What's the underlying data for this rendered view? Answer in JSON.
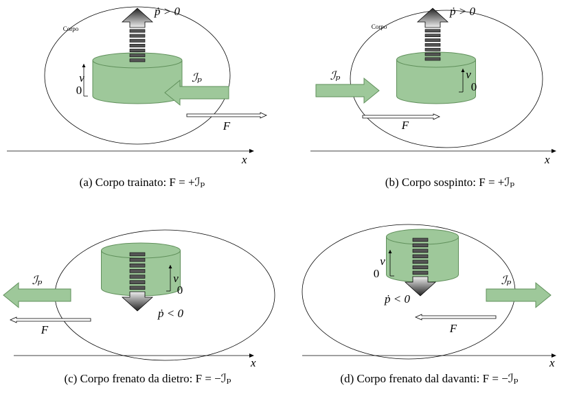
{
  "panels": [
    {
      "body_label": "Corpo",
      "momentum_label": "ṗ > 0",
      "velocity_label": "v",
      "zero_label": "0",
      "impulse_label": "ℐₚ",
      "force_label": "F",
      "axis_label": "x",
      "caption": "(a) Corpo trainato: F = +ℐₚ"
    },
    {
      "body_label": "Corpo",
      "momentum_label": "ṗ > 0",
      "velocity_label": "v",
      "zero_label": "0",
      "impulse_label": "ℐₚ",
      "force_label": "F",
      "axis_label": "x",
      "caption": "(b) Corpo sospinto: F = +ℐₚ"
    },
    {
      "momentum_label": "ṗ < 0",
      "velocity_label": "v",
      "zero_label": "0",
      "impulse_label": "ℐₚ",
      "force_label": "F",
      "axis_label": "x",
      "caption": "(c) Corpo frenato da dietro: F = −ℐₚ"
    },
    {
      "momentum_label": "ṗ < 0",
      "velocity_label": "v",
      "zero_label": "0",
      "impulse_label": "ℐₚ",
      "force_label": "F",
      "axis_label": "x",
      "caption": "(d) Corpo frenato dal davanti: F = −ℐₚ"
    }
  ]
}
